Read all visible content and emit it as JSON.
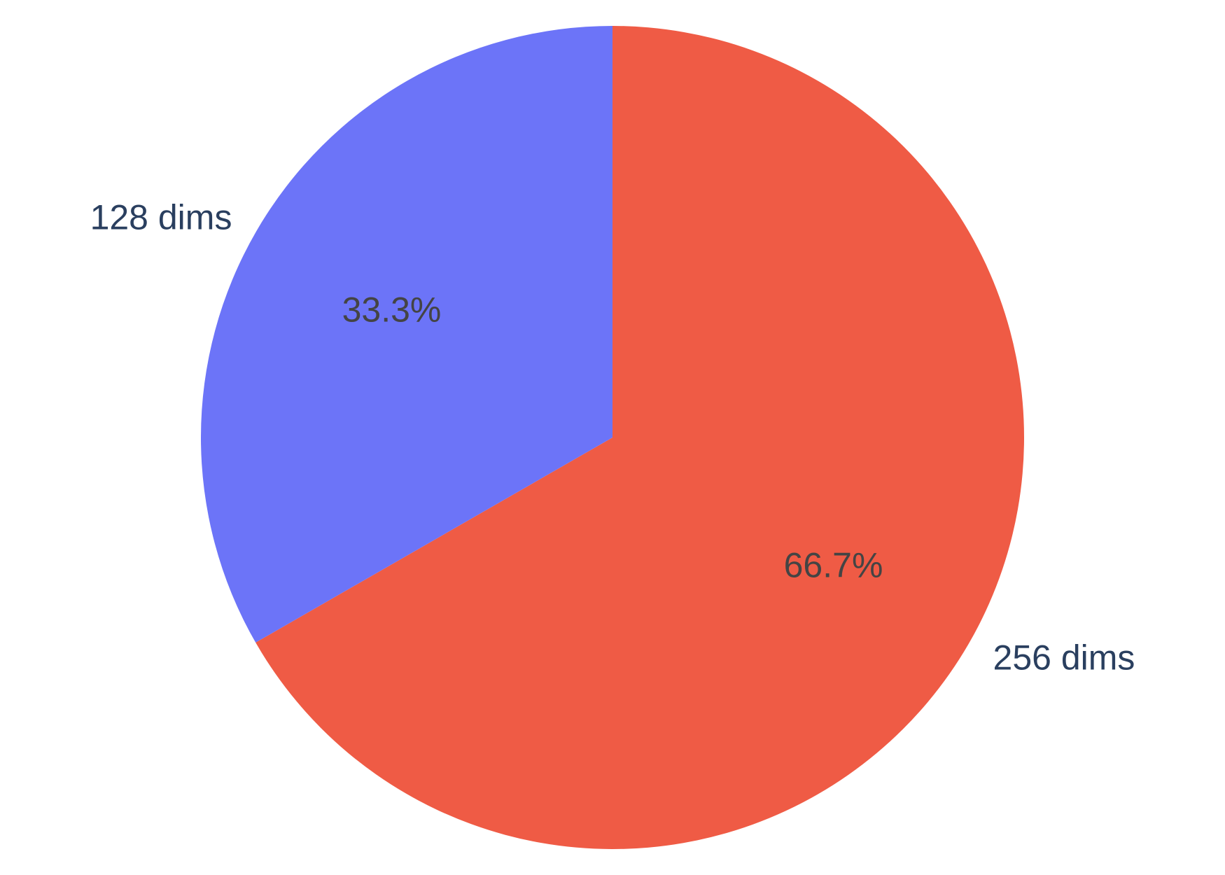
{
  "chart_data": {
    "type": "pie",
    "title": "",
    "start": "top",
    "direction": "clockwise",
    "slices": [
      {
        "label": "256 dims",
        "value": 66.7,
        "percent_text": "66.7%",
        "color": "#EF5B45",
        "label_side": "right"
      },
      {
        "label": "128 dims",
        "value": 33.3,
        "percent_text": "33.3%",
        "color": "#6C74F8",
        "label_side": "left"
      }
    ],
    "legend": "none",
    "label_color": "#2A3F5F",
    "percent_color": "#444444"
  }
}
